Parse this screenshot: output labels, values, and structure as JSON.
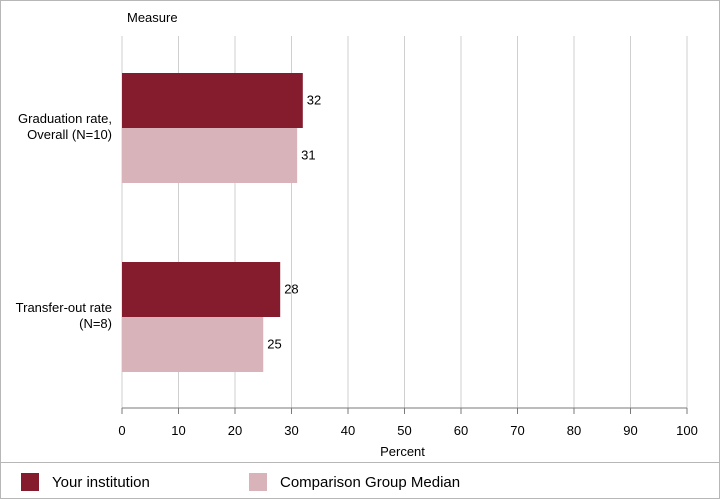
{
  "chart_data": {
    "type": "bar",
    "orientation": "horizontal",
    "y_axis_title": "Measure",
    "xlabel": "Percent",
    "xlim": [
      0,
      100
    ],
    "x_ticks": [
      0,
      10,
      20,
      30,
      40,
      50,
      60,
      70,
      80,
      90,
      100
    ],
    "grid": true,
    "legend_placement": "bottom",
    "categories": [
      [
        "Graduation rate,",
        "Overall (N=10)"
      ],
      [
        "Transfer-out rate",
        "(N=8)"
      ]
    ],
    "series": [
      {
        "name": "Your institution",
        "color": "#841c2e",
        "values": [
          32,
          28
        ]
      },
      {
        "name": "Comparison Group Median",
        "color": "#d8b3b9",
        "values": [
          31,
          25
        ]
      }
    ]
  }
}
